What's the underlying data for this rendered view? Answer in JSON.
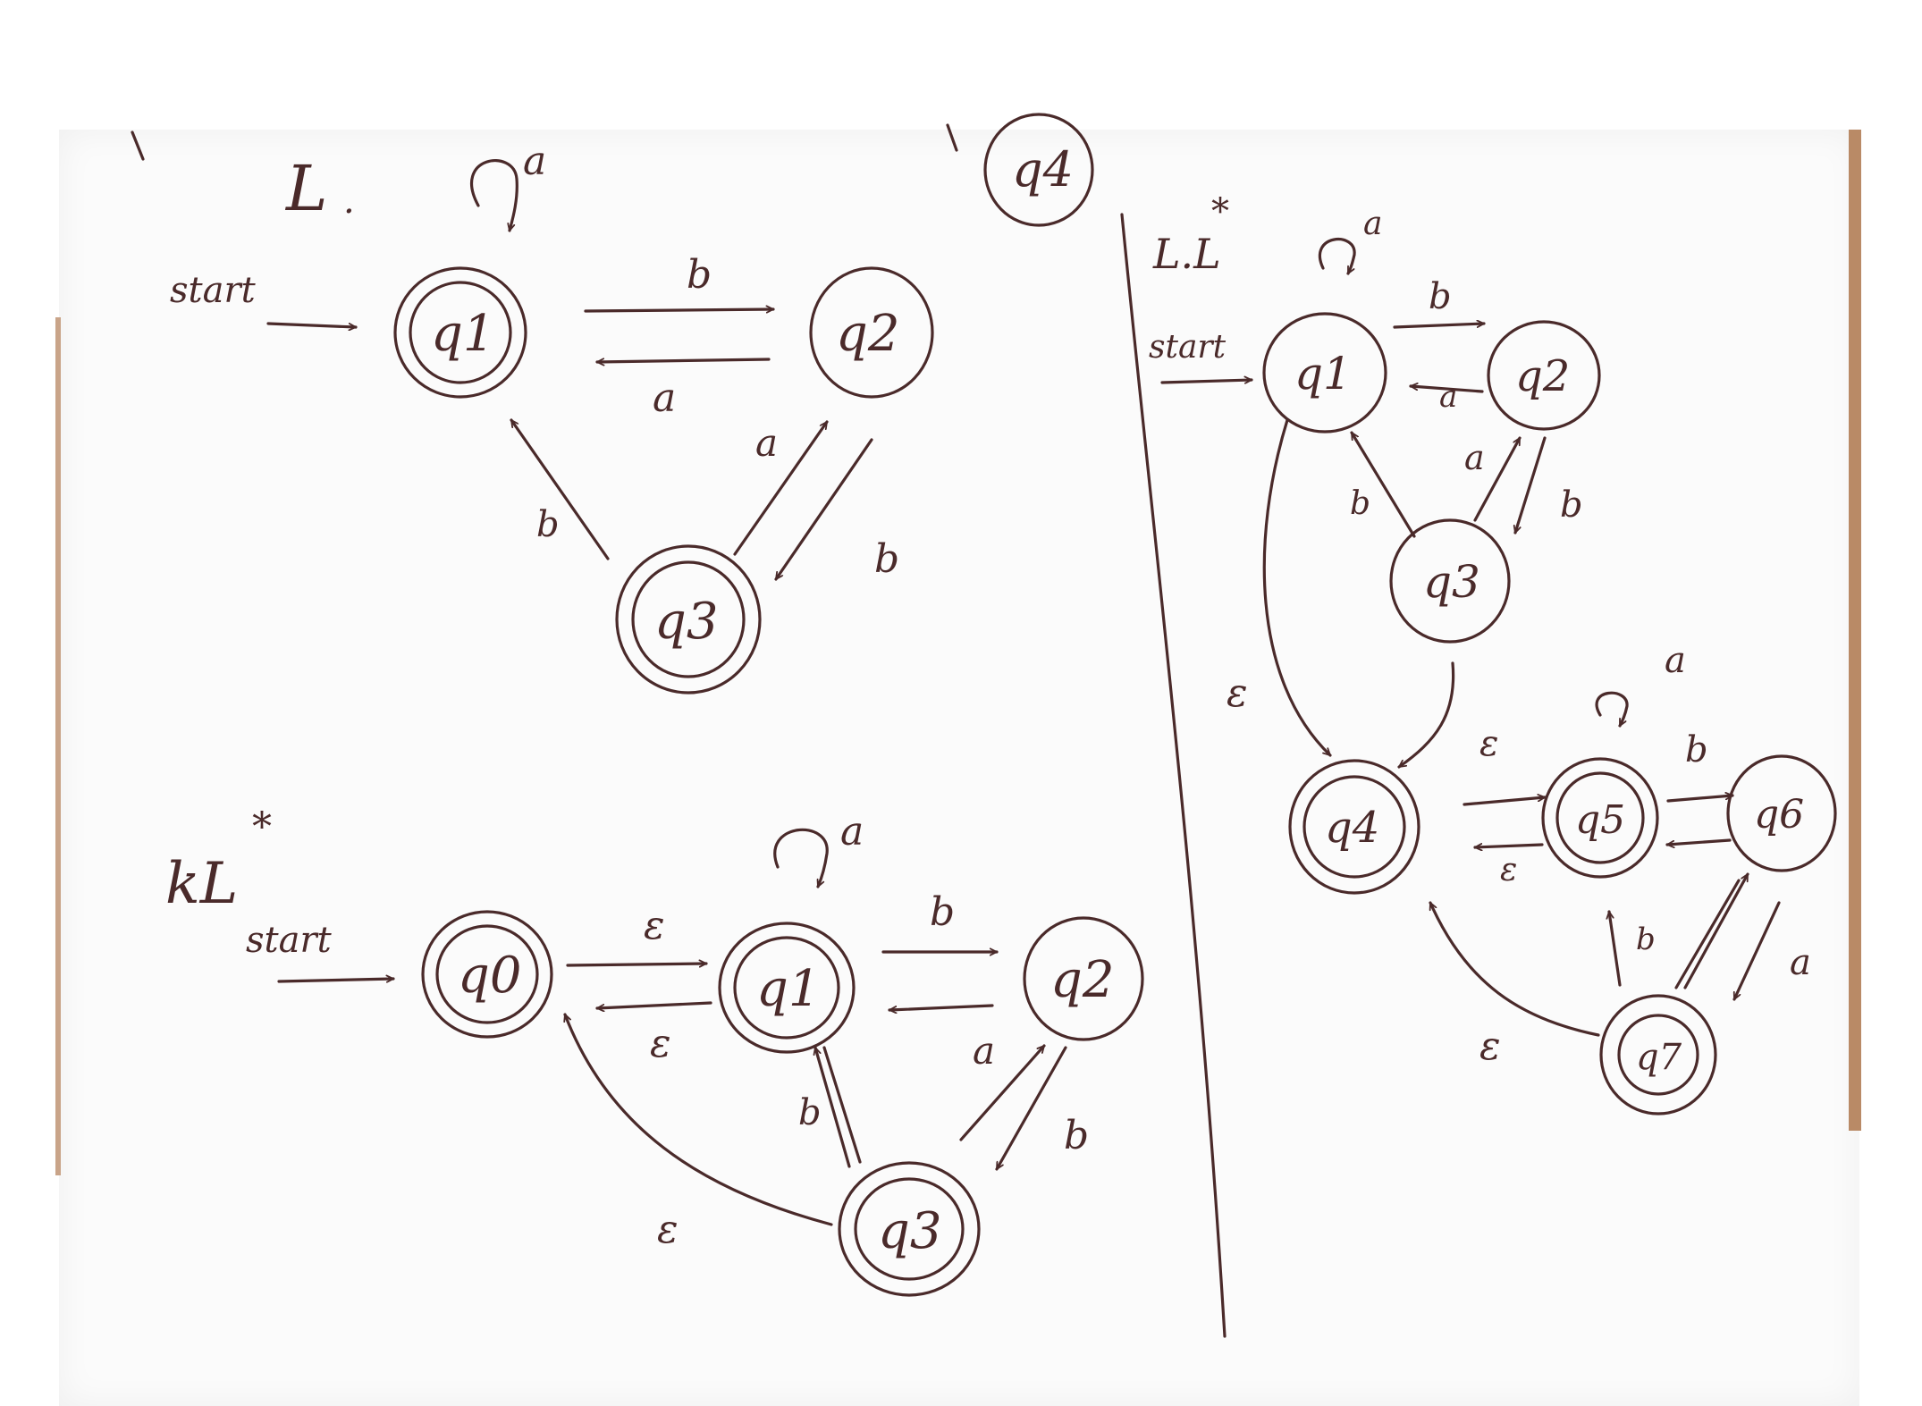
{
  "colors": {
    "ink": "#4a2a2a",
    "paper": "#fbfbfb",
    "edge": "#b98a66"
  },
  "diagram_top_left": {
    "title": "L",
    "start_label": "start",
    "states": [
      {
        "id": "q1",
        "label": "q1",
        "accepting": true
      },
      {
        "id": "q2",
        "label": "q2",
        "accepting": false
      },
      {
        "id": "q3",
        "label": "q3",
        "accepting": true
      },
      {
        "id": "q4",
        "label": "q4",
        "accepting": false
      }
    ],
    "transitions": [
      {
        "from": "q1",
        "to": "q1",
        "symbol": "a"
      },
      {
        "from": "q1",
        "to": "q2",
        "symbol": "b"
      },
      {
        "from": "q2",
        "to": "q1",
        "symbol": "a"
      },
      {
        "from": "q3",
        "to": "q2",
        "symbol": "a"
      },
      {
        "from": "q2",
        "to": "q3",
        "symbol": "b"
      },
      {
        "from": "q3",
        "to": "q1",
        "symbol": "b"
      }
    ]
  },
  "diagram_bottom_left": {
    "title": "kL",
    "title_mark": "*",
    "start_label": "start",
    "states": [
      {
        "id": "q0",
        "label": "q0",
        "accepting": true
      },
      {
        "id": "q1",
        "label": "q1",
        "accepting": true
      },
      {
        "id": "q2",
        "label": "q2",
        "accepting": false
      },
      {
        "id": "q3",
        "label": "q3",
        "accepting": true
      }
    ],
    "transitions": [
      {
        "from": "q1",
        "to": "q1",
        "symbol": "a"
      },
      {
        "from": "q0",
        "to": "q1",
        "symbol": "ε"
      },
      {
        "from": "q1",
        "to": "q0",
        "symbol": "ε"
      },
      {
        "from": "q1",
        "to": "q2",
        "symbol": "b"
      },
      {
        "from": "q2",
        "to": "q1",
        "symbol": ""
      },
      {
        "from": "q3",
        "to": "q2",
        "symbol": "a"
      },
      {
        "from": "q2",
        "to": "q3",
        "symbol": "b"
      },
      {
        "from": "q3",
        "to": "q1",
        "symbol": "b"
      },
      {
        "from": "q3",
        "to": "q0",
        "symbol": "ε"
      }
    ]
  },
  "diagram_right": {
    "title": "L.L",
    "title_mark": "*",
    "start_label": "start",
    "states": [
      {
        "id": "q1",
        "label": "q1",
        "accepting": false
      },
      {
        "id": "q2",
        "label": "q2",
        "accepting": false
      },
      {
        "id": "q3",
        "label": "q3",
        "accepting": false
      },
      {
        "id": "q4",
        "label": "q4",
        "accepting": true
      },
      {
        "id": "q5",
        "label": "q5",
        "accepting": true
      },
      {
        "id": "q6",
        "label": "q6",
        "accepting": false
      },
      {
        "id": "q7",
        "label": "q7",
        "accepting": true
      }
    ],
    "transitions": [
      {
        "from": "q1",
        "to": "q1",
        "symbol": "a"
      },
      {
        "from": "q1",
        "to": "q2",
        "symbol": "b"
      },
      {
        "from": "q2",
        "to": "q1",
        "symbol": "a"
      },
      {
        "from": "q3",
        "to": "q2",
        "symbol": "a"
      },
      {
        "from": "q2",
        "to": "q3",
        "symbol": "b"
      },
      {
        "from": "q3",
        "to": "q1",
        "symbol": "b"
      },
      {
        "from": "q1",
        "to": "q4",
        "symbol": "ε"
      },
      {
        "from": "q3",
        "to": "q4",
        "symbol": ""
      },
      {
        "from": "q4",
        "to": "q5",
        "symbol": "ε"
      },
      {
        "from": "q5",
        "to": "q4",
        "symbol": "ε"
      },
      {
        "from": "q5",
        "to": "q5",
        "symbol": "a"
      },
      {
        "from": "q5",
        "to": "q6",
        "symbol": "b"
      },
      {
        "from": "q6",
        "to": "q5",
        "symbol": ""
      },
      {
        "from": "q7",
        "to": "q6",
        "symbol": "a"
      },
      {
        "from": "q6",
        "to": "q7",
        "symbol": "b"
      },
      {
        "from": "q7",
        "to": "q5",
        "symbol": "b"
      },
      {
        "from": "q7",
        "to": "q4",
        "symbol": "ε"
      }
    ]
  }
}
